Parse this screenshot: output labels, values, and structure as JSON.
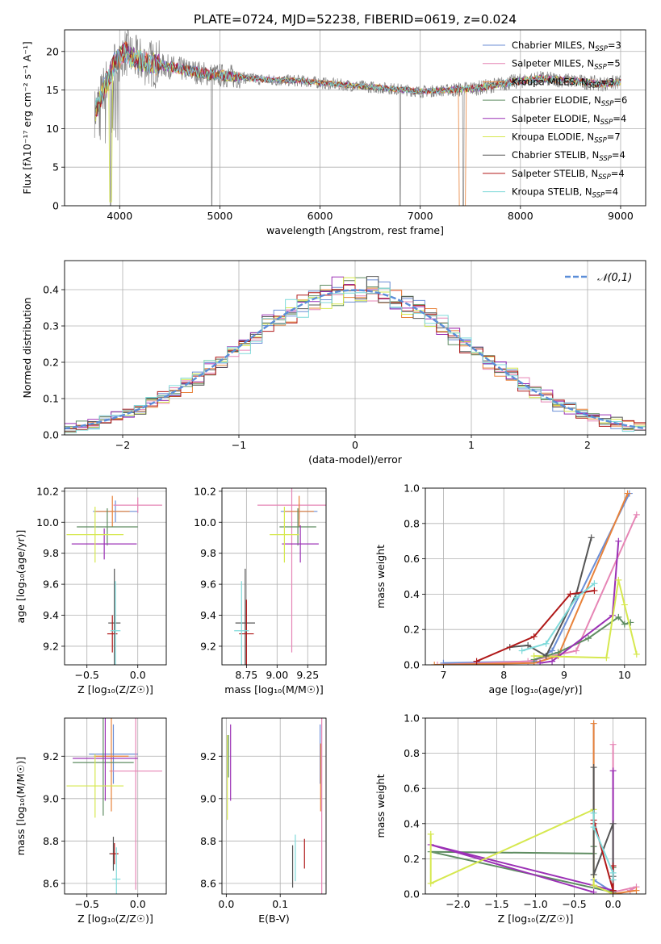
{
  "figure_title": "PLATE=0724, MJD=52238, FIBERID=0619, z=0.024",
  "models": [
    {
      "name": "Chabrier MILES",
      "nssp": "3",
      "color": "#6b8ed6"
    },
    {
      "name": "Salpeter MILES",
      "nssp": "5",
      "color": "#e685b5"
    },
    {
      "name": "Kroupa MILES",
      "nssp": "3",
      "color": "#e8823a"
    },
    {
      "name": "Chabrier ELODIE",
      "nssp": "6",
      "color": "#5e8c61"
    },
    {
      "name": "Salpeter ELODIE",
      "nssp": "4",
      "color": "#9b30b5"
    },
    {
      "name": "Kroupa ELODIE",
      "nssp": "7",
      "color": "#d6e84f"
    },
    {
      "name": "Chabrier STELIB",
      "nssp": "4",
      "color": "#555555"
    },
    {
      "name": "Salpeter STELIB",
      "nssp": "4",
      "color": "#b01818"
    },
    {
      "name": "Kroupa STELIB",
      "nssp": "4",
      "color": "#7fdada"
    }
  ],
  "chart_data": [
    {
      "id": "spectrum",
      "type": "line",
      "xlabel": "wavelength [Angstrom, rest frame]",
      "ylabel": "Flux [fλ10⁻¹⁷ erg cm⁻² s⁻¹ A⁻¹]",
      "xlim": [
        3450,
        9250
      ],
      "ylim": [
        0,
        22.8
      ],
      "xticks": [
        4000,
        5000,
        6000,
        7000,
        8000,
        9000
      ],
      "yticks": [
        0,
        5,
        10,
        15,
        20
      ],
      "data_color": "#808080",
      "continuum": {
        "x": [
          3750,
          3850,
          3950,
          4050,
          4150,
          4300,
          4500,
          4700,
          4900,
          5100,
          5300,
          5500,
          5800,
          6100,
          6400,
          6700,
          7000,
          7300,
          7600,
          7900,
          8200,
          8500,
          8800,
          9000
        ],
        "y": [
          12.0,
          15.5,
          18.5,
          20.0,
          19.0,
          18.5,
          18.0,
          17.5,
          17.0,
          16.8,
          16.5,
          16.3,
          16.2,
          15.8,
          15.5,
          15.2,
          14.8,
          15.0,
          15.3,
          16.0,
          16.5,
          16.2,
          15.8,
          16.0
        ]
      },
      "dips": [
        {
          "x": 3910,
          "y": 0
        },
        {
          "x": 4920,
          "y": 0
        },
        {
          "x": 6800,
          "y": 0
        },
        {
          "x": 7430,
          "y": 0
        }
      ]
    },
    {
      "id": "residuals",
      "type": "step",
      "xlabel": "(data-model)/error",
      "ylabel": "Normed distribution",
      "xlim": [
        -2.5,
        2.5
      ],
      "ylim": [
        0,
        0.48
      ],
      "xticks": [
        -2,
        -1,
        0,
        1,
        2
      ],
      "yticks": [
        0.0,
        0.1,
        0.2,
        0.3,
        0.4
      ],
      "reference": {
        "label": "𝒩(0,1)",
        "mean": 0,
        "sigma": 1,
        "color": "#5b8ed8"
      }
    },
    {
      "id": "age_vs_Z",
      "type": "errorbar",
      "xlabel": "Z [log₁₀(Z/Z☉)]",
      "ylabel": "age  [log₁₀(age/yr)]",
      "xlim": [
        -0.72,
        0.28
      ],
      "ylim": [
        9.08,
        10.22
      ],
      "xticks": [
        -0.5,
        0.0
      ],
      "yticks": [
        9.2,
        9.4,
        9.6,
        9.8,
        10.0,
        10.2
      ],
      "points": [
        {
          "m": 0,
          "x": -0.22,
          "y": 10.07,
          "xe": 0.22,
          "ye": 0.07
        },
        {
          "m": 1,
          "x": 0.0,
          "y": 10.11,
          "xe": 0.24,
          "ye": 0.05
        },
        {
          "m": 2,
          "x": -0.25,
          "y": 10.07,
          "xe": 0.17,
          "ye": 0.1
        },
        {
          "m": 3,
          "x": -0.3,
          "y": 9.97,
          "xe": 0.3,
          "ye": 0.12
        },
        {
          "m": 4,
          "x": -0.33,
          "y": 9.86,
          "xe": 0.32,
          "ye": 0.1
        },
        {
          "m": 5,
          "x": -0.42,
          "y": 9.92,
          "xe": 0.28,
          "ye": 0.18
        },
        {
          "m": 6,
          "x": -0.23,
          "y": 9.35,
          "xe": 0.06,
          "ye": 0.35
        },
        {
          "m": 7,
          "x": -0.25,
          "y": 9.28,
          "xe": 0.05,
          "ye": 0.12
        },
        {
          "m": 8,
          "x": -0.22,
          "y": 9.3,
          "xe": 0.05,
          "ye": 0.32
        }
      ]
    },
    {
      "id": "age_vs_mass",
      "type": "errorbar",
      "xlabel": "mass [log₁₀(M/M☉)]",
      "ylabel": "",
      "xlim": [
        8.55,
        9.4
      ],
      "ylim": [
        9.08,
        10.22
      ],
      "xticks": [
        8.75,
        9.0,
        9.25
      ],
      "yticks": [
        9.2,
        9.4,
        9.6,
        9.8,
        10.0,
        10.2
      ],
      "points": [
        {
          "m": 0,
          "x": 9.18,
          "y": 10.07,
          "xe": 0.15,
          "ye": 0.05
        },
        {
          "m": 1,
          "x": 9.12,
          "y": 10.11,
          "xe": 0.28,
          "ye": 0.95
        },
        {
          "m": 2,
          "x": 9.18,
          "y": 10.07,
          "xe": 0.12,
          "ye": 0.1
        },
        {
          "m": 3,
          "x": 9.17,
          "y": 9.97,
          "xe": 0.15,
          "ye": 0.12
        },
        {
          "m": 4,
          "x": 9.19,
          "y": 9.86,
          "xe": 0.15,
          "ye": 0.12
        },
        {
          "m": 5,
          "x": 9.06,
          "y": 9.92,
          "xe": 0.12,
          "ye": 0.18
        },
        {
          "m": 6,
          "x": 8.74,
          "y": 9.35,
          "xe": 0.08,
          "ye": 0.35
        },
        {
          "m": 7,
          "x": 8.75,
          "y": 9.28,
          "xe": 0.06,
          "ye": 0.22
        },
        {
          "m": 8,
          "x": 8.71,
          "y": 9.3,
          "xe": 0.06,
          "ye": 0.32
        }
      ]
    },
    {
      "id": "mw_vs_age",
      "type": "line",
      "xlabel": "age  [log₁₀(age/yr)]",
      "ylabel": "mass weight",
      "xlim": [
        6.7,
        10.35
      ],
      "ylim": [
        0,
        1.0
      ],
      "xticks": [
        7,
        8,
        9,
        10
      ],
      "yticks": [
        0.0,
        0.2,
        0.4,
        0.6,
        0.8,
        1.0
      ],
      "series": [
        {
          "m": 0,
          "x": [
            7.0,
            8.5,
            8.8,
            10.08
          ],
          "y": [
            0.01,
            0.02,
            0.08,
            0.97
          ]
        },
        {
          "m": 1,
          "x": [
            6.9,
            8.4,
            9.2,
            10.2
          ],
          "y": [
            0.0,
            0.02,
            0.08,
            0.85
          ]
        },
        {
          "m": 2,
          "x": [
            6.85,
            8.5,
            8.9,
            10.05
          ],
          "y": [
            0.0,
            0.01,
            0.05,
            0.97
          ]
        },
        {
          "m": 3,
          "x": [
            8.5,
            8.9,
            9.4,
            9.9,
            10.0,
            10.1
          ],
          "y": [
            0.03,
            0.07,
            0.15,
            0.27,
            0.23,
            0.24
          ]
        },
        {
          "m": 4,
          "x": [
            8.6,
            8.8,
            9.8,
            9.9
          ],
          "y": [
            0.01,
            0.02,
            0.28,
            0.7
          ]
        },
        {
          "m": 5,
          "x": [
            8.5,
            9.7,
            9.9,
            10.0,
            10.2
          ],
          "y": [
            0.05,
            0.04,
            0.48,
            0.34,
            0.06
          ]
        },
        {
          "m": 6,
          "x": [
            8.1,
            8.4,
            8.7,
            9.2,
            9.45
          ],
          "y": [
            0.1,
            0.11,
            0.05,
            0.4,
            0.72
          ]
        },
        {
          "m": 7,
          "x": [
            7.55,
            8.5,
            9.1,
            9.5
          ],
          "y": [
            0.02,
            0.16,
            0.4,
            0.42
          ]
        },
        {
          "m": 8,
          "x": [
            8.3,
            8.7,
            9.2,
            9.5
          ],
          "y": [
            0.08,
            0.12,
            0.38,
            0.46
          ]
        }
      ]
    },
    {
      "id": "mass_vs_Z",
      "type": "errorbar",
      "xlabel": "Z [log₁₀(Z/Z☉)]",
      "ylabel": "mass [log₁₀(M/M☉)]",
      "xlim": [
        -0.72,
        0.28
      ],
      "ylim": [
        8.55,
        9.38
      ],
      "xticks": [
        -0.5,
        0.0
      ],
      "yticks": [
        8.6,
        8.8,
        9.0,
        9.2
      ],
      "points": [
        {
          "m": 0,
          "x": -0.24,
          "y": 9.21,
          "xe": 0.24,
          "ye": 0.14
        },
        {
          "m": 1,
          "x": -0.02,
          "y": 9.13,
          "xe": 0.26,
          "ye": 0.56
        },
        {
          "m": 2,
          "x": -0.26,
          "y": 9.2,
          "xe": 0.17,
          "ye": 0.26
        },
        {
          "m": 3,
          "x": -0.34,
          "y": 9.17,
          "xe": 0.3,
          "ye": 0.25
        },
        {
          "m": 4,
          "x": -0.32,
          "y": 9.19,
          "xe": 0.32,
          "ye": 0.2
        },
        {
          "m": 5,
          "x": -0.42,
          "y": 9.06,
          "xe": 0.28,
          "ye": 0.15
        },
        {
          "m": 6,
          "x": -0.24,
          "y": 8.74,
          "xe": 0.04,
          "ye": 0.08
        },
        {
          "m": 7,
          "x": -0.23,
          "y": 8.74,
          "xe": 0.04,
          "ye": 0.05
        },
        {
          "m": 8,
          "x": -0.21,
          "y": 8.62,
          "xe": 0.04,
          "ye": 0.15
        }
      ]
    },
    {
      "id": "mass_vs_ebv",
      "type": "errorbar",
      "xlabel": "E(B-V)",
      "ylabel": "",
      "xlim": [
        -0.008,
        0.185
      ],
      "ylim": [
        8.55,
        9.38
      ],
      "xticks": [
        0.0,
        0.1
      ],
      "yticks": [
        8.6,
        8.8,
        9.0,
        9.2
      ],
      "points": [
        {
          "m": 0,
          "x": 0.174,
          "y": 9.21,
          "xe": 0.0,
          "ye": 0.14
        },
        {
          "m": 1,
          "x": 0.177,
          "y": 9.0,
          "xe": 0.0,
          "ye": 0.45
        },
        {
          "m": 2,
          "x": 0.175,
          "y": 9.1,
          "xe": 0.0,
          "ye": 0.16
        },
        {
          "m": 3,
          "x": 0.004,
          "y": 9.2,
          "xe": 0.0,
          "ye": 0.1
        },
        {
          "m": 4,
          "x": 0.008,
          "y": 9.17,
          "xe": 0.0,
          "ye": 0.18
        },
        {
          "m": 5,
          "x": 0.002,
          "y": 9.1,
          "xe": 0.0,
          "ye": 0.2
        },
        {
          "m": 6,
          "x": 0.123,
          "y": 8.68,
          "xe": 0.0,
          "ye": 0.1
        },
        {
          "m": 7,
          "x": 0.145,
          "y": 8.74,
          "xe": 0.0,
          "ye": 0.07
        },
        {
          "m": 8,
          "x": 0.128,
          "y": 8.72,
          "xe": 0.0,
          "ye": 0.11
        }
      ]
    },
    {
      "id": "mw_vs_Z",
      "type": "line",
      "xlabel": "Z [log₁₀(Z/Z☉)]",
      "ylabel": "mass weight",
      "xlim": [
        -2.42,
        0.42
      ],
      "ylim": [
        0,
        1.0
      ],
      "xticks": [
        -2.0,
        -1.5,
        -1.0,
        -0.5,
        0.0
      ],
      "yticks": [
        0.0,
        0.2,
        0.4,
        0.6,
        0.8,
        1.0
      ],
      "series": [
        {
          "m": 0,
          "x": [
            -0.25,
            -0.25,
            0.0,
            0.0
          ],
          "y": [
            0.97,
            0.08,
            0.01,
            0.02
          ]
        },
        {
          "m": 1,
          "x": [
            0.0,
            0.0,
            0.3,
            0.22
          ],
          "y": [
            0.85,
            0.01,
            0.04,
            0.02
          ]
        },
        {
          "m": 2,
          "x": [
            -0.25,
            -0.25,
            0.0,
            0.3
          ],
          "y": [
            0.97,
            0.05,
            0.0,
            0.02
          ]
        },
        {
          "m": 3,
          "x": [
            -0.25,
            -0.25,
            -2.35,
            0.0,
            0.0
          ],
          "y": [
            0.27,
            0.23,
            0.24,
            0.01,
            0.15
          ]
        },
        {
          "m": 4,
          "x": [
            0.0,
            0.0,
            -2.35,
            -0.25
          ],
          "y": [
            0.7,
            0.02,
            0.28,
            0.01
          ]
        },
        {
          "m": 5,
          "x": [
            -2.35,
            -2.35,
            -0.25,
            -0.25,
            0.0
          ],
          "y": [
            0.34,
            0.06,
            0.48,
            0.05,
            0.0
          ]
        },
        {
          "m": 6,
          "x": [
            -0.25,
            -0.25,
            0.0,
            0.0
          ],
          "y": [
            0.72,
            0.11,
            0.4,
            0.1
          ]
        },
        {
          "m": 7,
          "x": [
            0.0,
            0.0,
            -0.25,
            -0.25
          ],
          "y": [
            0.16,
            0.02,
            0.42,
            0.4
          ]
        },
        {
          "m": 8,
          "x": [
            -0.25,
            -0.25,
            0.0,
            0.0
          ],
          "y": [
            0.46,
            0.38,
            0.12,
            0.08
          ]
        }
      ]
    }
  ]
}
